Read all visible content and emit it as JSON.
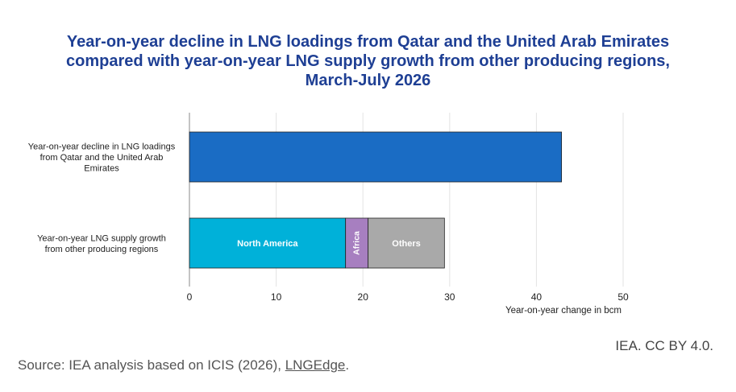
{
  "title_lines": [
    "Year-on-year decline in LNG loadings from Qatar and the United Arab Emirates",
    "compared with year-on-year LNG supply growth from other producing regions,",
    "March-July 2026"
  ],
  "credit": "IEA. CC BY 4.0.",
  "source": {
    "prefix": "Source: IEA analysis based on ICIS (2026),",
    "link": "LNGEdge",
    "suffix": "."
  },
  "chart_data": {
    "type": "bar",
    "orientation": "horizontal",
    "stacked": true,
    "xlabel": "Year-on-year change in bcm",
    "xlim": [
      0,
      50
    ],
    "xticks": [
      0,
      10,
      20,
      30,
      40,
      50
    ],
    "grid": true,
    "categories": [
      {
        "label_lines": [
          "Year-on-year decline in LNG loadings",
          "from Qatar and the United Arab",
          "Emirates"
        ],
        "segments": [
          {
            "name": "",
            "value": 42.9,
            "color": "#1a6cc4",
            "label_vertical": false
          }
        ]
      },
      {
        "label_lines": [
          "Year-on-year LNG supply growth",
          "from other producing regions"
        ],
        "segments": [
          {
            "name": "North America",
            "value": 18.0,
            "color": "#00b1d9",
            "label_vertical": false
          },
          {
            "name": "Africa",
            "value": 2.6,
            "color": "#a77fc0",
            "label_vertical": true
          },
          {
            "name": "Others",
            "value": 8.8,
            "color": "#a9a9a9",
            "label_vertical": false
          }
        ]
      }
    ]
  }
}
